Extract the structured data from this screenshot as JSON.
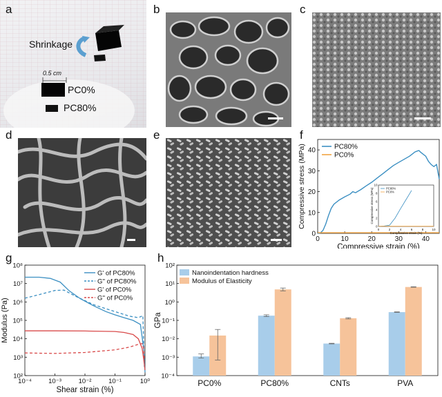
{
  "panels": {
    "a": {
      "label": "a",
      "shrinkage_text": "Shrinkage",
      "scale_text": "0.5 cm",
      "sample1": "PC0%",
      "sample2": "PC80%"
    },
    "b": {
      "label": "b"
    },
    "c": {
      "label": "c"
    },
    "d": {
      "label": "d"
    },
    "e": {
      "label": "e"
    },
    "f": {
      "label": "f"
    },
    "g": {
      "label": "g"
    },
    "h": {
      "label": "h"
    }
  },
  "chart_data": [
    {
      "id": "f",
      "type": "line",
      "xlabel": "Compressive strain (%)",
      "ylabel": "Compressive stress (MPa)",
      "xlim": [
        0,
        45
      ],
      "ylim": [
        0,
        45
      ],
      "xticks": [
        0,
        10,
        20,
        30,
        40
      ],
      "yticks": [
        0,
        10,
        20,
        30,
        40
      ],
      "legend": "top-left",
      "series": [
        {
          "name": "PC80%",
          "color": "#3b8fc2",
          "x": [
            0,
            1,
            2,
            3,
            4,
            5,
            6,
            8,
            10,
            12,
            13,
            14,
            16,
            18,
            20,
            22,
            24,
            26,
            28,
            30,
            32,
            34,
            35,
            36,
            37,
            37.5,
            38,
            39,
            40,
            41,
            42,
            43,
            44,
            45
          ],
          "y": [
            0,
            0.2,
            1.5,
            4.5,
            8.5,
            12,
            14,
            16,
            17.5,
            18.8,
            20,
            19.5,
            21,
            22.8,
            24.5,
            26.5,
            28.5,
            30.5,
            32.5,
            34,
            35.5,
            37,
            38,
            39,
            39.5,
            39.7,
            39,
            38,
            37,
            34.5,
            33,
            32,
            33,
            26
          ]
        },
        {
          "name": "PC0%",
          "color": "#f2a341",
          "x": [
            0,
            45
          ],
          "y": [
            0.3,
            0.3
          ]
        }
      ],
      "inset": {
        "xlabel": "Compressive strain (%)",
        "ylabel": "Compressive stress (MPa)",
        "xlim": [
          0,
          10
        ],
        "ylim": [
          0,
          10
        ],
        "xticks": [
          0,
          2,
          4,
          6,
          8,
          10
        ],
        "yticks": [
          0,
          2,
          4,
          6,
          8,
          10
        ],
        "series": [
          {
            "name": "PC80%",
            "color": "#3b8fc2",
            "x": [
              0,
              1,
              2,
              3,
              4,
              5,
              6
            ],
            "y": [
              0,
              0.1,
              0.3,
              2.0,
              4.3,
              6.5,
              8.7
            ]
          },
          {
            "name": "PC0%",
            "color": "#f2a341",
            "x": [
              0,
              10
            ],
            "y": [
              0.05,
              0.05
            ]
          }
        ]
      }
    },
    {
      "id": "g",
      "type": "line",
      "xlabel": "Shear strain (%)",
      "ylabel": "Modulus (Pa)",
      "xscale": "log",
      "yscale": "log",
      "xlim": [
        0.0001,
        1
      ],
      "ylim": [
        100,
        100000000
      ],
      "xtick_labels": [
        "10⁻⁴",
        "10⁻³",
        "10⁻²",
        "10⁻¹",
        "10⁰"
      ],
      "ytick_labels": [
        "10²",
        "10³",
        "10⁴",
        "10⁵",
        "10⁶",
        "10⁷",
        "10⁸"
      ],
      "legend": "top-right",
      "series": [
        {
          "name": "G' of PC80%",
          "color": "#3b8fc2",
          "dash": false,
          "x": [
            0.0001,
            0.0003,
            0.0007,
            0.0015,
            0.003,
            0.007,
            0.02,
            0.05,
            0.1,
            0.2,
            0.4,
            0.7,
            0.9,
            1.0
          ],
          "y": [
            22000000,
            22000000,
            19000000,
            12000000,
            4000000,
            1500000,
            600000,
            300000,
            200000,
            140000,
            100000,
            60000,
            3000,
            150
          ]
        },
        {
          "name": "G'' of PC80%",
          "color": "#3b8fc2",
          "dash": true,
          "x": [
            0.0001,
            0.0003,
            0.001,
            0.002,
            0.005,
            0.02,
            0.1,
            0.3,
            0.6,
            0.85,
            0.95
          ],
          "y": [
            1600000,
            2500000,
            4200000,
            4400000,
            2000000,
            700000,
            300000,
            170000,
            140000,
            180000,
            300
          ]
        },
        {
          "name": "G' of PC0%",
          "color": "#d94a4a",
          "dash": false,
          "x": [
            0.0001,
            0.001,
            0.01,
            0.1,
            0.2,
            0.4,
            0.6,
            0.8,
            0.9,
            1.0
          ],
          "y": [
            27000,
            27000,
            26500,
            25000,
            22000,
            17000,
            10000,
            3000,
            800,
            200
          ]
        },
        {
          "name": "G'' of PC0%",
          "color": "#d94a4a",
          "dash": true,
          "x": [
            0.0001,
            0.001,
            0.01,
            0.1,
            0.3,
            0.6,
            0.8,
            0.9,
            0.95
          ],
          "y": [
            1700,
            1600,
            1800,
            2500,
            3500,
            5000,
            5500,
            3000,
            600
          ]
        }
      ]
    },
    {
      "id": "h",
      "type": "bar",
      "ylabel": "GPa",
      "yscale": "log",
      "ylim": [
        0.0001,
        100
      ],
      "ytick_labels": [
        "10⁻⁴",
        "10⁻³",
        "10⁻²",
        "10⁻¹",
        "10⁰",
        "10¹",
        "10²"
      ],
      "categories": [
        "PC0%",
        "PC80%",
        "CNTs",
        "PVA"
      ],
      "legend": "top-left",
      "series": [
        {
          "name": "Nanoindentation hardness",
          "color": "#a8cdea",
          "values": [
            0.0011,
            0.18,
            0.0055,
            0.28
          ],
          "err_low": [
            0.0009,
            0.16,
            0.0053,
            0.27
          ],
          "err_high": [
            0.0015,
            0.2,
            0.0057,
            0.29
          ]
        },
        {
          "name": "Modulus of Elasticity",
          "color": "#f6c39a",
          "values": [
            0.015,
            4.8,
            0.13,
            6.5
          ],
          "err_low": [
            0.0007,
            4.0,
            0.12,
            6.3
          ],
          "err_high": [
            0.032,
            5.7,
            0.14,
            6.7
          ]
        }
      ]
    }
  ]
}
